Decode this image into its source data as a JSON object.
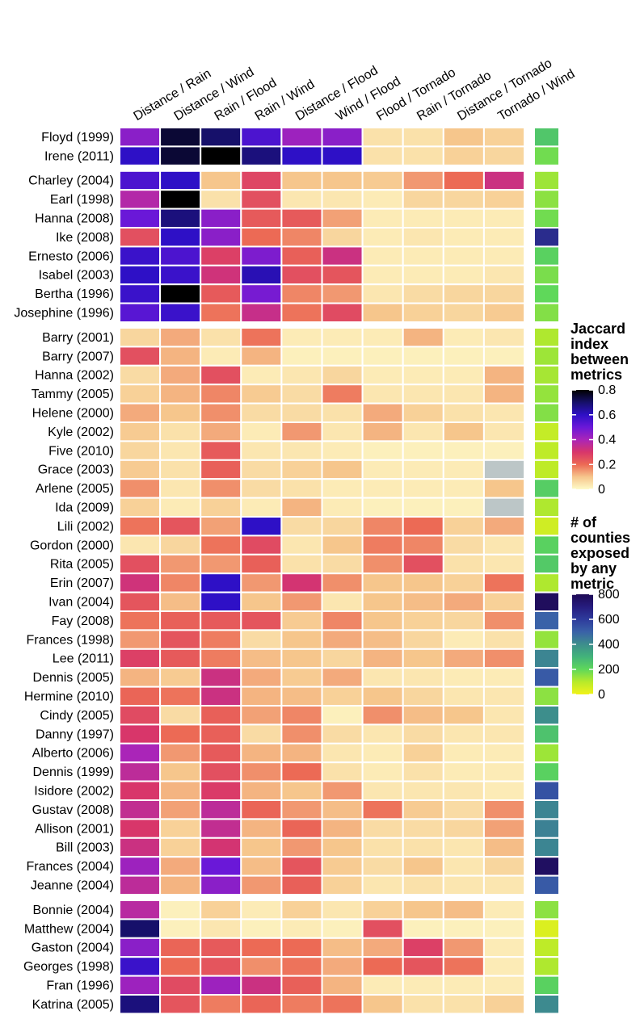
{
  "chart_data": {
    "type": "heatmap",
    "columns": [
      "Distance / Rain",
      "Distance / Wind",
      "Rain / Flood",
      "Rain / Wind",
      "Distance / Flood",
      "Wind / Flood",
      "Flood / Tornado",
      "Rain / Tornado",
      "Distance / Tornado",
      "Tornado / Wind"
    ],
    "groups": [
      {
        "rows": [
          {
            "name": "Floyd (1999)",
            "values": [
              0.45,
              0.75,
              0.7,
              0.55,
              0.42,
              0.45,
              0.05,
              0.05,
              0.1,
              0.08
            ],
            "count": 250
          },
          {
            "name": "Irene (2011)",
            "values": [
              0.6,
              0.75,
              0.8,
              0.68,
              0.6,
              0.6,
              0.05,
              0.05,
              0.08,
              0.07
            ],
            "count": 180
          }
        ]
      },
      {
        "rows": [
          {
            "name": "Charley (2004)",
            "values": [
              0.55,
              0.6,
              0.1,
              0.27,
              0.1,
              0.1,
              0.09,
              0.15,
              0.2,
              0.33
            ],
            "count": 130
          },
          {
            "name": "Earl (1998)",
            "values": [
              0.38,
              0.8,
              0.05,
              0.25,
              0.04,
              0.04,
              0.03,
              0.07,
              0.07,
              0.08
            ],
            "count": 150
          },
          {
            "name": "Hanna (2008)",
            "values": [
              0.5,
              0.68,
              0.45,
              0.23,
              0.23,
              0.14,
              0.03,
              0.03,
              0.03,
              0.03
            ],
            "count": 180
          },
          {
            "name": "Ike (2008)",
            "values": [
              0.25,
              0.6,
              0.45,
              0.2,
              0.17,
              0.07,
              0.03,
              0.04,
              0.03,
              0.03
            ],
            "count": 650
          },
          {
            "name": "Ernesto (2006)",
            "values": [
              0.58,
              0.55,
              0.28,
              0.47,
              0.22,
              0.33,
              0.03,
              0.03,
              0.03,
              0.03
            ],
            "count": 220
          },
          {
            "name": "Isabel (2003)",
            "values": [
              0.6,
              0.58,
              0.32,
              0.62,
              0.25,
              0.24,
              0.03,
              0.03,
              0.03,
              0.04
            ],
            "count": 170
          },
          {
            "name": "Bertha (1996)",
            "values": [
              0.58,
              0.8,
              0.23,
              0.48,
              0.17,
              0.15,
              0.04,
              0.06,
              0.07,
              0.07
            ],
            "count": 200
          },
          {
            "name": "Josephine (1996)",
            "values": [
              0.53,
              0.58,
              0.19,
              0.34,
              0.19,
              0.26,
              0.1,
              0.08,
              0.07,
              0.09
            ],
            "count": 160
          }
        ]
      },
      {
        "rows": [
          {
            "name": "Barry (2001)",
            "values": [
              0.07,
              0.13,
              0.05,
              0.19,
              0.03,
              0.03,
              0.03,
              0.12,
              0.03,
              0.04
            ],
            "count": 110
          },
          {
            "name": "Barry (2007)",
            "values": [
              0.25,
              0.12,
              0.03,
              0.12,
              0.02,
              0.02,
              0.02,
              0.02,
              0.02,
              0.02
            ],
            "count": 130
          },
          {
            "name": "Hanna (2002)",
            "values": [
              0.06,
              0.13,
              0.25,
              0.03,
              0.04,
              0.07,
              0.03,
              0.03,
              0.03,
              0.12
            ],
            "count": 120
          },
          {
            "name": "Tammy (2005)",
            "values": [
              0.08,
              0.12,
              0.17,
              0.09,
              0.06,
              0.18,
              0.04,
              0.04,
              0.04,
              0.12
            ],
            "count": 140
          },
          {
            "name": "Helene (2000)",
            "values": [
              0.13,
              0.1,
              0.16,
              0.06,
              0.06,
              0.05,
              0.13,
              0.08,
              0.05,
              0.04
            ],
            "count": 160
          },
          {
            "name": "Kyle (2002)",
            "values": [
              0.09,
              0.05,
              0.13,
              0.03,
              0.15,
              0.04,
              0.12,
              0.04,
              0.1,
              0.04
            ],
            "count": 80
          },
          {
            "name": "Five (2010)",
            "values": [
              0.07,
              0.04,
              0.23,
              0.04,
              0.04,
              0.03,
              0.02,
              0.02,
              0.02,
              0.02
            ],
            "count": 90
          },
          {
            "name": "Grace (2003)",
            "values": [
              0.09,
              0.05,
              0.22,
              0.06,
              0.08,
              0.1,
              0.03,
              0.03,
              0.03,
              null
            ],
            "count": 90
          },
          {
            "name": "Arlene (2005)",
            "values": [
              0.16,
              0.04,
              0.16,
              0.06,
              0.05,
              0.03,
              0.03,
              0.03,
              0.03,
              0.1
            ],
            "count": 230
          },
          {
            "name": "Ida (2009)",
            "values": [
              0.08,
              0.03,
              0.08,
              0.03,
              0.12,
              0.03,
              0.02,
              0.02,
              0.02,
              null
            ],
            "count": 110
          },
          {
            "name": "Lili (2002)",
            "values": [
              0.19,
              0.24,
              0.14,
              0.6,
              0.06,
              0.07,
              0.17,
              0.2,
              0.08,
              0.13
            ],
            "count": 60
          },
          {
            "name": "Gordon (2000)",
            "values": [
              0.04,
              0.07,
              0.19,
              0.26,
              0.04,
              0.1,
              0.18,
              0.17,
              0.06,
              0.04
            ],
            "count": 220
          },
          {
            "name": "Rita (2005)",
            "values": [
              0.25,
              0.15,
              0.15,
              0.22,
              0.05,
              0.06,
              0.16,
              0.25,
              0.05,
              0.04
            ],
            "count": 240
          },
          {
            "name": "Erin (2007)",
            "values": [
              0.32,
              0.17,
              0.6,
              0.15,
              0.31,
              0.16,
              0.1,
              0.1,
              0.08,
              0.19
            ],
            "count": 110
          },
          {
            "name": "Ivan (2004)",
            "values": [
              0.24,
              0.11,
              0.6,
              0.1,
              0.15,
              0.04,
              0.1,
              0.11,
              0.13,
              0.08
            ],
            "count": 780
          },
          {
            "name": "Fay (2008)",
            "values": [
              0.19,
              0.22,
              0.23,
              0.24,
              0.09,
              0.17,
              0.1,
              0.08,
              0.07,
              0.16
            ],
            "count": 500
          },
          {
            "name": "Frances (1998)",
            "values": [
              0.15,
              0.24,
              0.18,
              0.06,
              0.1,
              0.13,
              0.11,
              0.07,
              0.03,
              0.05
            ],
            "count": 140
          },
          {
            "name": "Lee (2011)",
            "values": [
              0.28,
              0.23,
              0.18,
              0.11,
              0.1,
              0.07,
              0.12,
              0.1,
              0.13,
              0.16
            ],
            "count": 420
          },
          {
            "name": "Dennis (2005)",
            "values": [
              0.12,
              0.09,
              0.33,
              0.13,
              0.09,
              0.13,
              0.04,
              0.04,
              0.03,
              0.03
            ],
            "count": 520
          },
          {
            "name": "Hermine (2010)",
            "values": [
              0.21,
              0.19,
              0.33,
              0.12,
              0.11,
              0.08,
              0.1,
              0.07,
              0.04,
              0.04
            ],
            "count": 150
          },
          {
            "name": "Cindy (2005)",
            "values": [
              0.26,
              0.06,
              0.22,
              0.14,
              0.17,
              0.02,
              0.16,
              0.11,
              0.1,
              0.04
            ],
            "count": 400
          },
          {
            "name": "Danny (1997)",
            "values": [
              0.3,
              0.2,
              0.22,
              0.06,
              0.16,
              0.06,
              0.04,
              0.06,
              0.04,
              0.04
            ],
            "count": 260
          },
          {
            "name": "Alberto (2006)",
            "values": [
              0.4,
              0.15,
              0.23,
              0.12,
              0.12,
              0.04,
              0.03,
              0.08,
              0.03,
              0.03
            ],
            "count": 130
          },
          {
            "name": "Dennis (1999)",
            "values": [
              0.36,
              0.1,
              0.25,
              0.16,
              0.2,
              0.05,
              0.03,
              0.05,
              0.03,
              0.03
            ],
            "count": 220
          },
          {
            "name": "Isidore (2002)",
            "values": [
              0.3,
              0.12,
              0.29,
              0.12,
              0.1,
              0.15,
              0.04,
              0.04,
              0.04,
              0.03
            ],
            "count": 540
          },
          {
            "name": "Gustav (2008)",
            "values": [
              0.35,
              0.14,
              0.36,
              0.21,
              0.15,
              0.11,
              0.19,
              0.09,
              0.06,
              0.16
            ],
            "count": 420
          },
          {
            "name": "Allison (2001)",
            "values": [
              0.3,
              0.08,
              0.35,
              0.12,
              0.21,
              0.12,
              0.06,
              0.06,
              0.07,
              0.14
            ],
            "count": 430
          },
          {
            "name": "Bill (2003)",
            "values": [
              0.33,
              0.08,
              0.31,
              0.1,
              0.15,
              0.1,
              0.05,
              0.05,
              0.04,
              0.11
            ],
            "count": 420
          },
          {
            "name": "Frances (2004)",
            "values": [
              0.42,
              0.13,
              0.5,
              0.11,
              0.24,
              0.09,
              0.06,
              0.1,
              0.04,
              0.07
            ],
            "count": 770
          },
          {
            "name": "Jeanne (2004)",
            "values": [
              0.36,
              0.12,
              0.45,
              0.15,
              0.22,
              0.08,
              0.04,
              0.05,
              0.04,
              0.04
            ],
            "count": 520
          }
        ]
      },
      {
        "rows": [
          {
            "name": "Bonnie (2004)",
            "values": [
              0.37,
              0.02,
              0.08,
              0.03,
              0.08,
              0.04,
              0.08,
              0.1,
              0.11,
              0.03
            ],
            "count": 150
          },
          {
            "name": "Matthew (2004)",
            "values": [
              0.7,
              0.02,
              0.04,
              0.02,
              0.03,
              0.02,
              0.25,
              0.02,
              0.02,
              0.02
            ],
            "count": 40
          },
          {
            "name": "Gaston (2004)",
            "values": [
              0.45,
              0.21,
              0.23,
              0.2,
              0.2,
              0.11,
              0.13,
              0.28,
              0.15,
              0.03
            ],
            "count": 90
          },
          {
            "name": "Georges (1998)",
            "values": [
              0.58,
              0.2,
              0.24,
              0.16,
              0.19,
              0.13,
              0.2,
              0.24,
              0.19,
              0.03
            ],
            "count": 110
          },
          {
            "name": "Fran (1996)",
            "values": [
              0.42,
              0.26,
              0.42,
              0.33,
              0.22,
              0.12,
              0.03,
              0.03,
              0.03,
              0.03
            ],
            "count": 220
          },
          {
            "name": "Katrina (2005)",
            "values": [
              0.68,
              0.24,
              0.18,
              0.21,
              0.18,
              0.19,
              0.1,
              0.05,
              0.05,
              0.08
            ],
            "count": 410
          }
        ]
      }
    ],
    "colorscale": [
      "#fefbc8",
      "#f6c68c",
      "#ec6a55",
      "#d8366a",
      "#aa25b8",
      "#6a18d8",
      "#2e10c6",
      "#16106a",
      "#000000"
    ],
    "zlim": [
      0,
      0.8
    ],
    "zticks": [
      0,
      0.2,
      0.4,
      0.6,
      0.8
    ],
    "legend_title": "Jaccard index between metrics",
    "missing_color": "#bcc6c7",
    "count_colorscale": [
      "#f2f21a",
      "#b8ea2a",
      "#5fd85a",
      "#42b37a",
      "#3d8e8c",
      "#3a62a8",
      "#2e3b9c",
      "#261c7e",
      "#1e0a55"
    ],
    "count_lim": [
      0,
      800
    ],
    "count_ticks": [
      0,
      200,
      400,
      600,
      800
    ],
    "count_legend_title": "# of counties exposed by any metric"
  }
}
